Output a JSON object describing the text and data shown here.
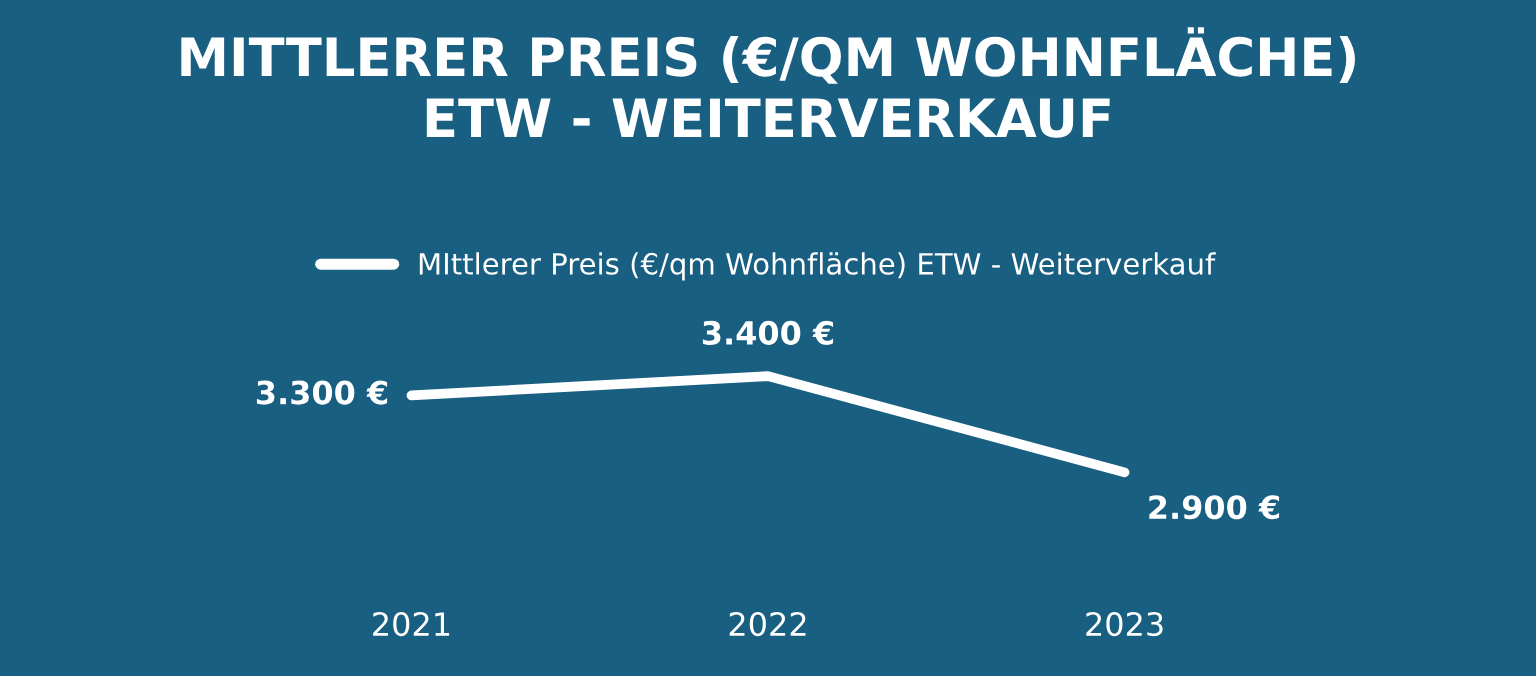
{
  "chart_data": {
    "type": "line",
    "title": "MITTLERER PREIS (€/QM WOHNFLÄCHE)\nETW - WEITERVERKAUF",
    "categories": [
      "2021",
      "2022",
      "2023"
    ],
    "series": [
      {
        "name": "MIttlerer Preis (€/qm Wohnfläche) ETW - Weiterverkauf",
        "color": "#ffffff",
        "values": [
          3300,
          3400,
          2900
        ],
        "value_labels": [
          "3.300 €",
          "3.400 €",
          "2.900 €"
        ]
      }
    ],
    "legend": "top",
    "grid": false,
    "marker": "none",
    "line_style": "solid"
  }
}
